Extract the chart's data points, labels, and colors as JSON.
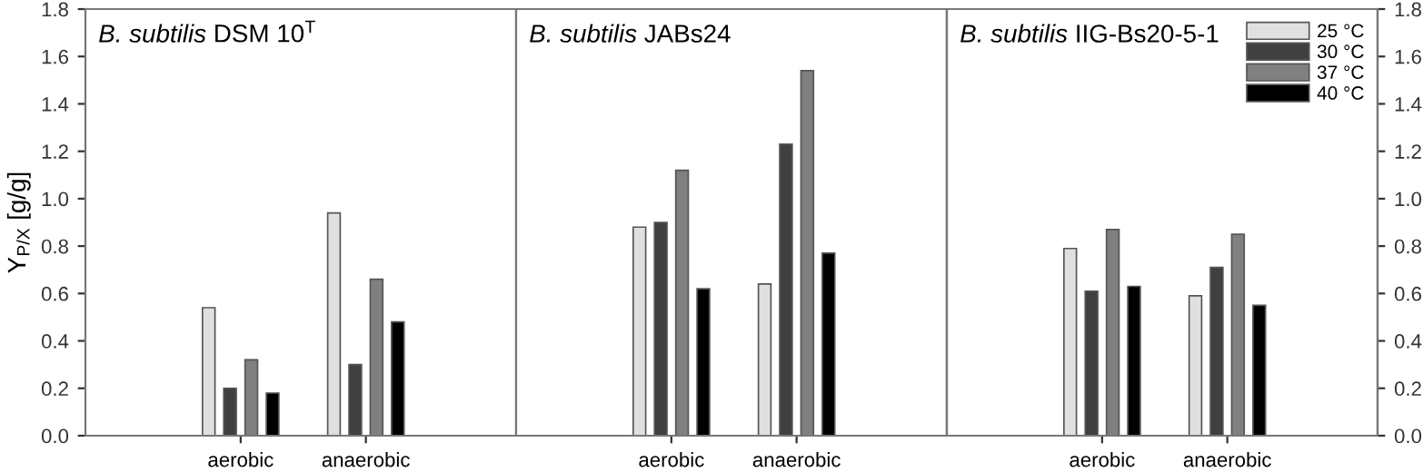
{
  "chart_data": [
    {
      "type": "bar",
      "title": "B. subtilis DSM 10$^{T}$",
      "ylabel": "Y$_{P/X}$ [g/g]",
      "categories": [
        "aerobic",
        "anaerobic"
      ],
      "ylim": [
        0,
        1.8
      ],
      "yticks": [
        {
          "value": 0,
          "label": "0.0"
        },
        0.2,
        0.4,
        0.6,
        0.8,
        {
          "value": 1,
          "label": "1.0"
        },
        1.2,
        1.4,
        1.6,
        1.8
      ],
      "series": [
        {
          "color": "#e0e0e0",
          "values": [
            0.54,
            0.94
          ]
        },
        {
          "color": "#404040",
          "values": [
            0.2,
            0.3
          ]
        },
        {
          "color": "#808080",
          "values": [
            0.32,
            0.66
          ]
        },
        {
          "color": "#000000",
          "values": [
            0.18,
            0.48
          ]
        }
      ],
      "grid": false,
      "legend": false
    },
    {
      "type": "bar",
      "title": "B. subtilis JABs24",
      "categories": [
        "aerobic",
        "anaerobic"
      ],
      "ylim": [
        0,
        1.8
      ],
      "yticks": [
        0,
        0.2,
        0.4,
        0.6,
        0.8,
        1,
        1.2,
        1.4,
        1.6,
        1.8
      ],
      "tick_labels": "x",
      "series": [
        {
          "color": "#e0e0e0",
          "values": [
            0.88,
            0.64
          ]
        },
        {
          "color": "#404040",
          "values": [
            0.9,
            1.23
          ]
        },
        {
          "color": "#808080",
          "values": [
            1.12,
            1.54
          ]
        },
        {
          "color": "#000000",
          "values": [
            0.62,
            0.77
          ]
        }
      ],
      "grid": false,
      "legend": false
    },
    {
      "type": "bar",
      "title": "B. subtilis IIG-Bs20-5-1",
      "categories": [
        "aerobic",
        "anaerobic"
      ],
      "y2lim": [
        0,
        1.8
      ],
      "y2ticks": [
        {
          "value": 0,
          "label": "0.0"
        },
        0.2,
        0.4,
        0.6,
        0.8,
        {
          "value": 1,
          "label": "1.0"
        },
        1.2,
        1.4,
        1.6,
        1.8
      ],
      "series": [
        {
          "name": "25 °C",
          "color": "#e0e0e0",
          "axis": "y2",
          "values": [
            0.79,
            0.59
          ]
        },
        {
          "name": "30 °C",
          "color": "#404040",
          "axis": "y2",
          "values": [
            0.61,
            0.71
          ]
        },
        {
          "name": "37 °C",
          "color": "#808080",
          "axis": "y2",
          "values": [
            0.87,
            0.85
          ]
        },
        {
          "name": "40 °C",
          "color": "#000000",
          "axis": "y2",
          "values": [
            0.63,
            0.55
          ]
        }
      ],
      "grid": false,
      "legend": "top right"
    }
  ]
}
